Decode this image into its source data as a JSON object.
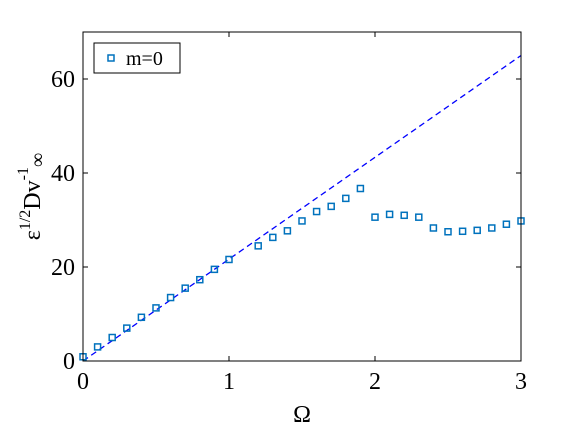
{
  "chart_data": {
    "type": "scatter",
    "xlabel": "Ω",
    "ylabel": {
      "prefix": "ε",
      "prefix_superscript": "1/2",
      "main": "Dv",
      "main_superscript": "-1",
      "subscript": "∞"
    },
    "xlim": [
      0,
      3
    ],
    "ylim": [
      0,
      70
    ],
    "xticks": [
      0,
      1,
      2,
      3
    ],
    "yticks": [
      0,
      20,
      40,
      60
    ],
    "grid": false,
    "legend_position": "top-left",
    "series": [
      {
        "name": "m=0",
        "marker": "square-open",
        "color": "#0072BD",
        "x": [
          0.0,
          0.1,
          0.2,
          0.3,
          0.4,
          0.5,
          0.6,
          0.7,
          0.8,
          0.9,
          1.0,
          1.2,
          1.3,
          1.4,
          1.5,
          1.6,
          1.7,
          1.8,
          1.9,
          2.0,
          2.1,
          2.2,
          2.3,
          2.4,
          2.5,
          2.6,
          2.7,
          2.8,
          2.9,
          3.0
        ],
        "y": [
          0.9,
          3.0,
          5.0,
          7.0,
          9.3,
          11.3,
          13.5,
          15.5,
          17.3,
          19.5,
          21.6,
          24.5,
          26.3,
          27.7,
          29.8,
          31.8,
          32.9,
          34.6,
          36.7,
          30.6,
          31.2,
          31.0,
          30.6,
          28.3,
          27.5,
          27.6,
          27.8,
          28.3,
          29.1,
          29.8
        ]
      }
    ],
    "reference_line": {
      "style": "dashed",
      "color": "#0000FF",
      "x": [
        0,
        3
      ],
      "y": [
        0,
        65
      ]
    }
  }
}
